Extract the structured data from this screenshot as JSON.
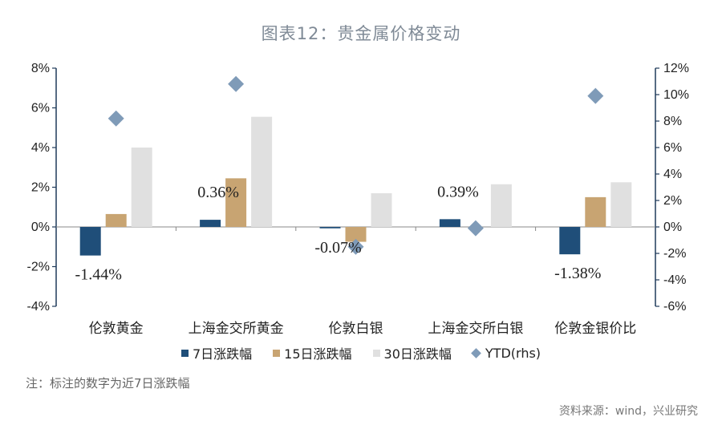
{
  "chart_data": {
    "type": "bar",
    "title": "图表12：贵金属价格变动",
    "categories": [
      "伦敦黄金",
      "上海金交所黄金",
      "伦敦白银",
      "上海金交所白银",
      "伦敦金银价比"
    ],
    "series": [
      {
        "name": "7日涨跌幅",
        "axis": "left",
        "color": "#1f4e79",
        "values": [
          -1.44,
          0.36,
          -0.07,
          0.39,
          -1.38
        ]
      },
      {
        "name": "15日涨跌幅",
        "axis": "left",
        "color": "#c8a472",
        "values": [
          0.65,
          2.45,
          -0.75,
          0.0,
          1.5
        ]
      },
      {
        "name": "30日涨跌幅",
        "axis": "left",
        "color": "#e0e0e0",
        "values": [
          4.0,
          5.55,
          1.7,
          2.15,
          2.25
        ]
      }
    ],
    "scatter_series": {
      "name": "YTD(rhs)",
      "axis": "right",
      "color": "#7f9bb8",
      "values": [
        8.2,
        10.8,
        -1.5,
        -0.1,
        9.9
      ]
    },
    "left_axis": {
      "ylim": [
        -4,
        8
      ],
      "ticks": [
        "-4%",
        "-2%",
        "0%",
        "2%",
        "4%",
        "6%",
        "8%"
      ]
    },
    "right_axis": {
      "ylim": [
        -6,
        12
      ],
      "ticks": [
        "-6%",
        "-4%",
        "-2%",
        "0%",
        "2%",
        "4%",
        "6%",
        "8%",
        "10%",
        "12%"
      ]
    },
    "data_labels": [
      "-1.44%",
      "0.36%",
      "-0.07%",
      "0.39%",
      "-1.38%"
    ],
    "legend": [
      "7日涨跌幅",
      "15日涨跌幅",
      "30日涨跌幅",
      "YTD(rhs)"
    ]
  },
  "note": "注：标注的数字为近7日涨跌幅",
  "source": "资料来源：wind，兴业研究"
}
